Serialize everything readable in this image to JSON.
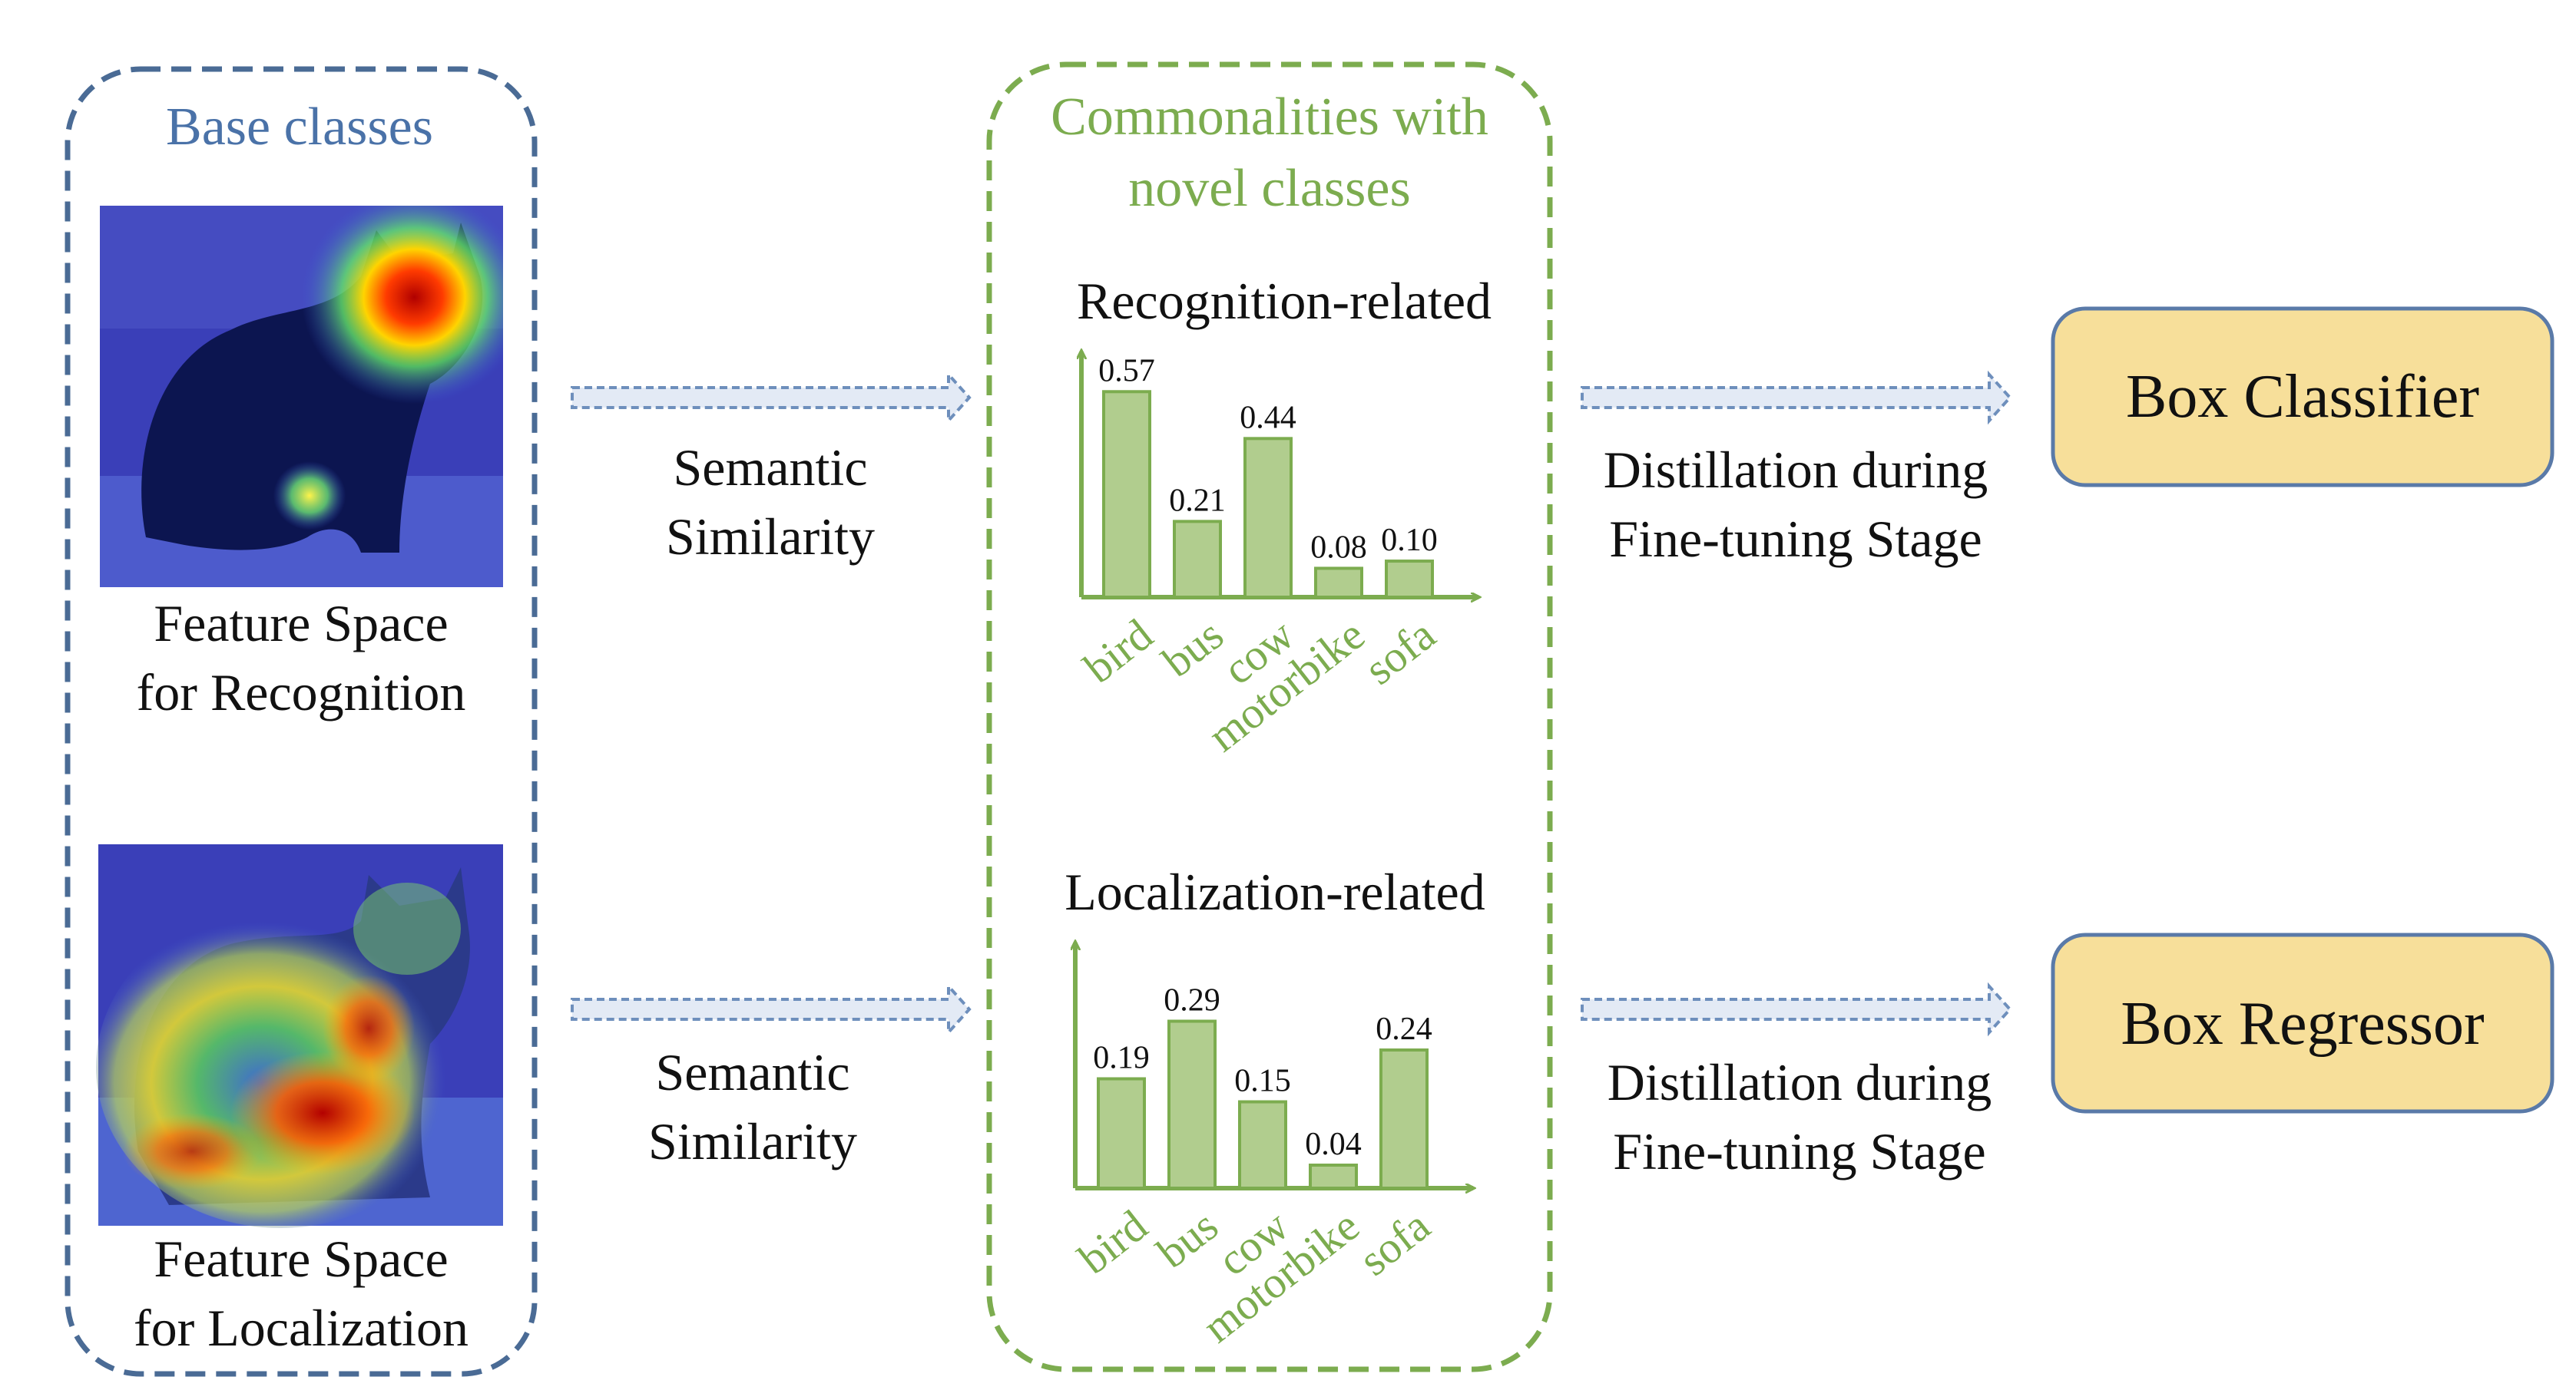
{
  "colors": {
    "base_border": "#4a6b95",
    "base_title": "#4a72a8",
    "common_border": "#7cac4f",
    "common_title": "#7cac4f",
    "bar_fill": "#b1cd8e",
    "bar_stroke": "#7cac4f",
    "axis": "#7cac4f",
    "arrow_fill": "#e3eaf5",
    "arrow_stroke": "#6e8fbc",
    "output_fill": "#f7df9a",
    "output_stroke": "#5a7aa8"
  },
  "base_panel": {
    "title": "Base classes",
    "image1_caption": [
      "Feature Space",
      "for Recognition"
    ],
    "image2_caption": [
      "Feature Space",
      "for Localization"
    ]
  },
  "arrows": {
    "semantic_top": [
      "Semantic",
      "Similarity"
    ],
    "semantic_bottom": [
      "Semantic",
      "Similarity"
    ],
    "distill_top": [
      "Distillation during",
      "Fine-tuning Stage"
    ],
    "distill_bottom": [
      "Distillation during",
      "Fine-tuning Stage"
    ]
  },
  "common_panel": {
    "title": [
      "Commonalities with",
      "novel classes"
    ]
  },
  "outputs": {
    "classifier": "Box Classifier",
    "regressor": "Box Regressor"
  },
  "chart_data": [
    {
      "type": "bar",
      "title": "Recognition-related",
      "categories": [
        "bird",
        "bus",
        "cow",
        "motorbike",
        "sofa"
      ],
      "values": [
        0.57,
        0.21,
        0.44,
        0.08,
        0.1
      ],
      "value_labels": [
        "0.57",
        "0.21",
        "0.44",
        "0.08",
        "0.10"
      ],
      "ylim": [
        0,
        0.66
      ],
      "grid": false
    },
    {
      "type": "bar",
      "title": "Localization-related",
      "categories": [
        "bird",
        "bus",
        "cow",
        "motorbike",
        "sofa"
      ],
      "values": [
        0.19,
        0.29,
        0.15,
        0.04,
        0.24
      ],
      "value_labels": [
        "0.19",
        "0.29",
        "0.15",
        "0.04",
        "0.24"
      ],
      "ylim": [
        0,
        0.4
      ],
      "grid": false
    }
  ]
}
